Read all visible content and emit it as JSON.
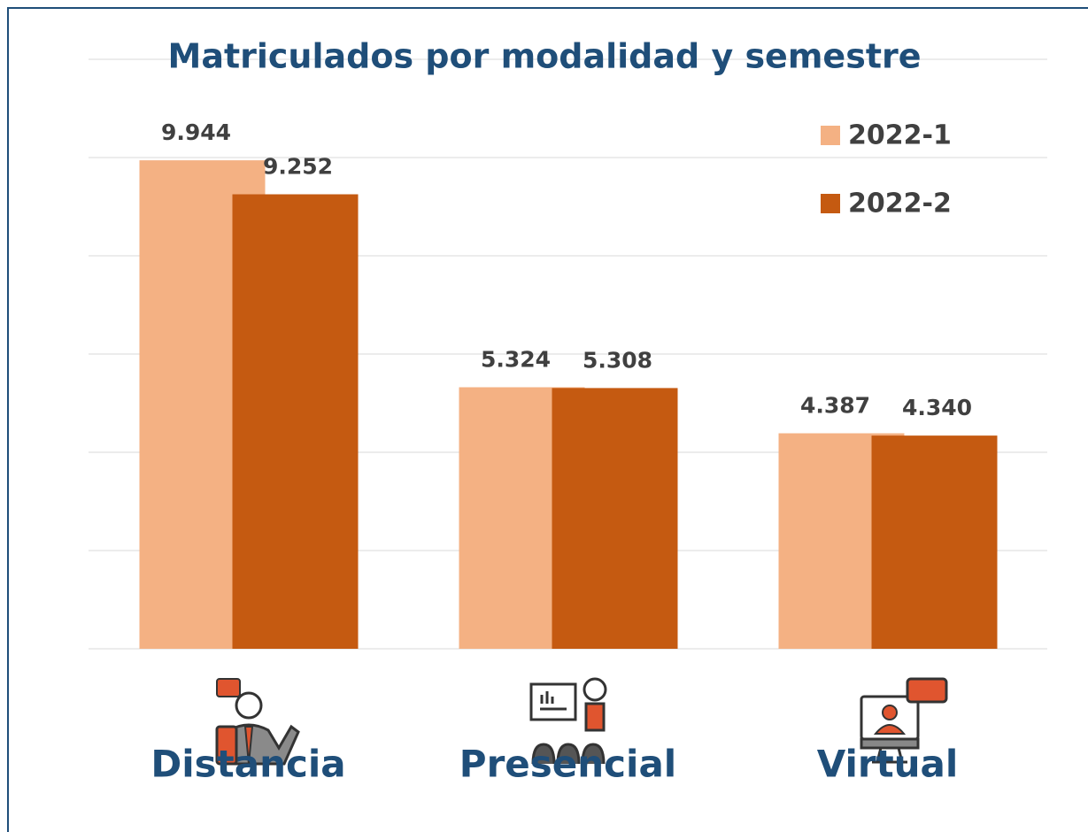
{
  "chart_data": {
    "type": "bar",
    "title": "Matriculados por modalidad y semestre",
    "categories": [
      "Distancia",
      "Presencial",
      "Virtual"
    ],
    "series": [
      {
        "name": "2022-1",
        "color": "#f4b183",
        "values": [
          9944,
          5324,
          4387
        ],
        "value_labels": [
          "9.944",
          "5.324",
          "4.387"
        ]
      },
      {
        "name": "2022-2",
        "color": "#c55a11",
        "values": [
          9252,
          5308,
          4340
        ],
        "value_labels": [
          "9.252",
          "5.308",
          "4.340"
        ]
      }
    ],
    "ylim": [
      0,
      12000
    ],
    "yticks": [
      0,
      2000,
      4000,
      6000,
      8000,
      10000,
      12000
    ],
    "grid": true,
    "legend": "top-right"
  }
}
